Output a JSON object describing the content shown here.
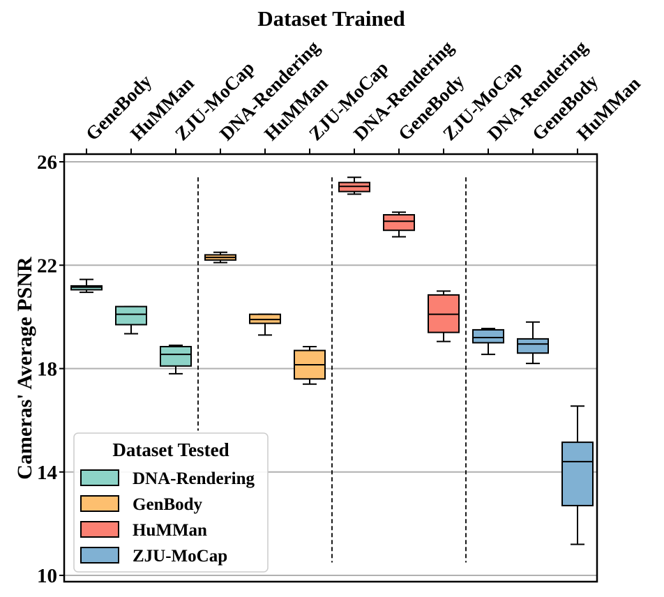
{
  "chart_data": {
    "type": "box",
    "title": "Dataset Trained",
    "ylabel": "Cameras' Average PSNR",
    "xlabel": "",
    "ylim": [
      10,
      26
    ],
    "yticks": [
      10,
      14,
      18,
      22,
      26
    ],
    "grid": "horizontal",
    "legend": {
      "title": "Dataset Tested",
      "placement": "bottom-left",
      "entries": [
        {
          "label": "DNA-Rendering",
          "color": "#8dd3c7"
        },
        {
          "label": "GenBody",
          "color": "#fdbf6f"
        },
        {
          "label": "HuMMan",
          "color": "#fb8072"
        },
        {
          "label": "ZJU-MoCap",
          "color": "#80b1d3"
        }
      ]
    },
    "categories": [
      "GeneBody",
      "HuMMan",
      "ZJU-MoCap",
      "DNA-Rendering",
      "HuMMan",
      "ZJU-MoCap",
      "DNA-Rendering",
      "GeneBody",
      "ZJU-MoCap",
      "DNA-Rendering",
      "GeneBody",
      "HuMMan"
    ],
    "group_separators_after": [
      3,
      6,
      9
    ],
    "boxes": [
      {
        "tested": "DNA-Rendering",
        "whisker_low": 20.95,
        "q1": 21.05,
        "median": 21.15,
        "q3": 21.2,
        "whisker_high": 21.45
      },
      {
        "tested": "DNA-Rendering",
        "whisker_low": 19.35,
        "q1": 19.7,
        "median": 20.1,
        "q3": 20.4,
        "whisker_high": 20.4
      },
      {
        "tested": "DNA-Rendering",
        "whisker_low": 17.8,
        "q1": 18.1,
        "median": 18.55,
        "q3": 18.85,
        "whisker_high": 18.9
      },
      {
        "tested": "GenBody",
        "whisker_low": 22.1,
        "q1": 22.2,
        "median": 22.3,
        "q3": 22.4,
        "whisker_high": 22.5
      },
      {
        "tested": "GenBody",
        "whisker_low": 19.3,
        "q1": 19.75,
        "median": 19.9,
        "q3": 20.1,
        "whisker_high": 20.1
      },
      {
        "tested": "GenBody",
        "whisker_low": 17.4,
        "q1": 17.6,
        "median": 18.15,
        "q3": 18.7,
        "whisker_high": 18.85
      },
      {
        "tested": "HuMMan",
        "whisker_low": 24.75,
        "q1": 24.85,
        "median": 25.05,
        "q3": 25.2,
        "whisker_high": 25.4
      },
      {
        "tested": "HuMMan",
        "whisker_low": 23.1,
        "q1": 23.35,
        "median": 23.7,
        "q3": 23.95,
        "whisker_high": 24.05
      },
      {
        "tested": "HuMMan",
        "whisker_low": 19.05,
        "q1": 19.4,
        "median": 20.1,
        "q3": 20.85,
        "whisker_high": 21.0
      },
      {
        "tested": "ZJU-MoCap",
        "whisker_low": 18.55,
        "q1": 19.0,
        "median": 19.2,
        "q3": 19.5,
        "whisker_high": 19.55
      },
      {
        "tested": "ZJU-MoCap",
        "whisker_low": 18.2,
        "q1": 18.6,
        "median": 18.95,
        "q3": 19.15,
        "whisker_high": 19.8
      },
      {
        "tested": "ZJU-MoCap",
        "whisker_low": 11.2,
        "q1": 12.7,
        "median": 14.4,
        "q3": 15.15,
        "whisker_high": 16.55
      }
    ]
  }
}
